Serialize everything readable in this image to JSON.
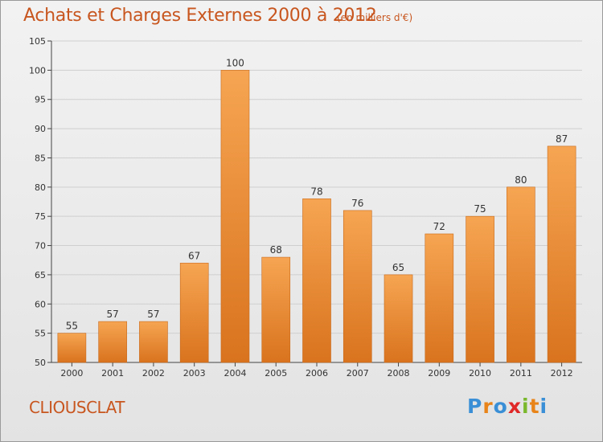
{
  "title": "Achats et Charges Externes 2000 à 2012",
  "subtitle": "(en milliers d'€)",
  "commune": "CLIOUSCLAT",
  "logo": {
    "text": "Proxiti",
    "letters": [
      "P",
      "r",
      "o",
      "x",
      "i",
      "t",
      "i"
    ],
    "colors": [
      "#3a8fd6",
      "#e8841a",
      "#3a8fd6",
      "#e02828",
      "#7ab82d",
      "#e8841a",
      "#3a8fd6"
    ]
  },
  "colors": {
    "bar_top": "#f6a552",
    "bar_bottom": "#d9731e",
    "bar_stroke": "#c86a1c",
    "title": "#c8561f",
    "grid": "#cfcfcf",
    "axis": "#444444"
  },
  "chart_data": {
    "type": "bar",
    "categories": [
      "2000",
      "2001",
      "2002",
      "2003",
      "2004",
      "2005",
      "2006",
      "2007",
      "2008",
      "2009",
      "2010",
      "2011",
      "2012"
    ],
    "values": [
      55,
      57,
      57,
      67,
      100,
      68,
      78,
      76,
      65,
      72,
      75,
      80,
      87
    ],
    "data_labels": [
      "55",
      "57",
      "57",
      "67",
      "100",
      "68",
      "78",
      "76",
      "65",
      "72",
      "75",
      "80",
      "87"
    ],
    "title": "Achats et Charges Externes 2000 à 2012",
    "xlabel": "",
    "ylabel": "",
    "ylim": [
      50,
      105
    ],
    "yticks": [
      50,
      55,
      60,
      65,
      70,
      75,
      80,
      85,
      90,
      95,
      100,
      105
    ],
    "grid": true
  }
}
